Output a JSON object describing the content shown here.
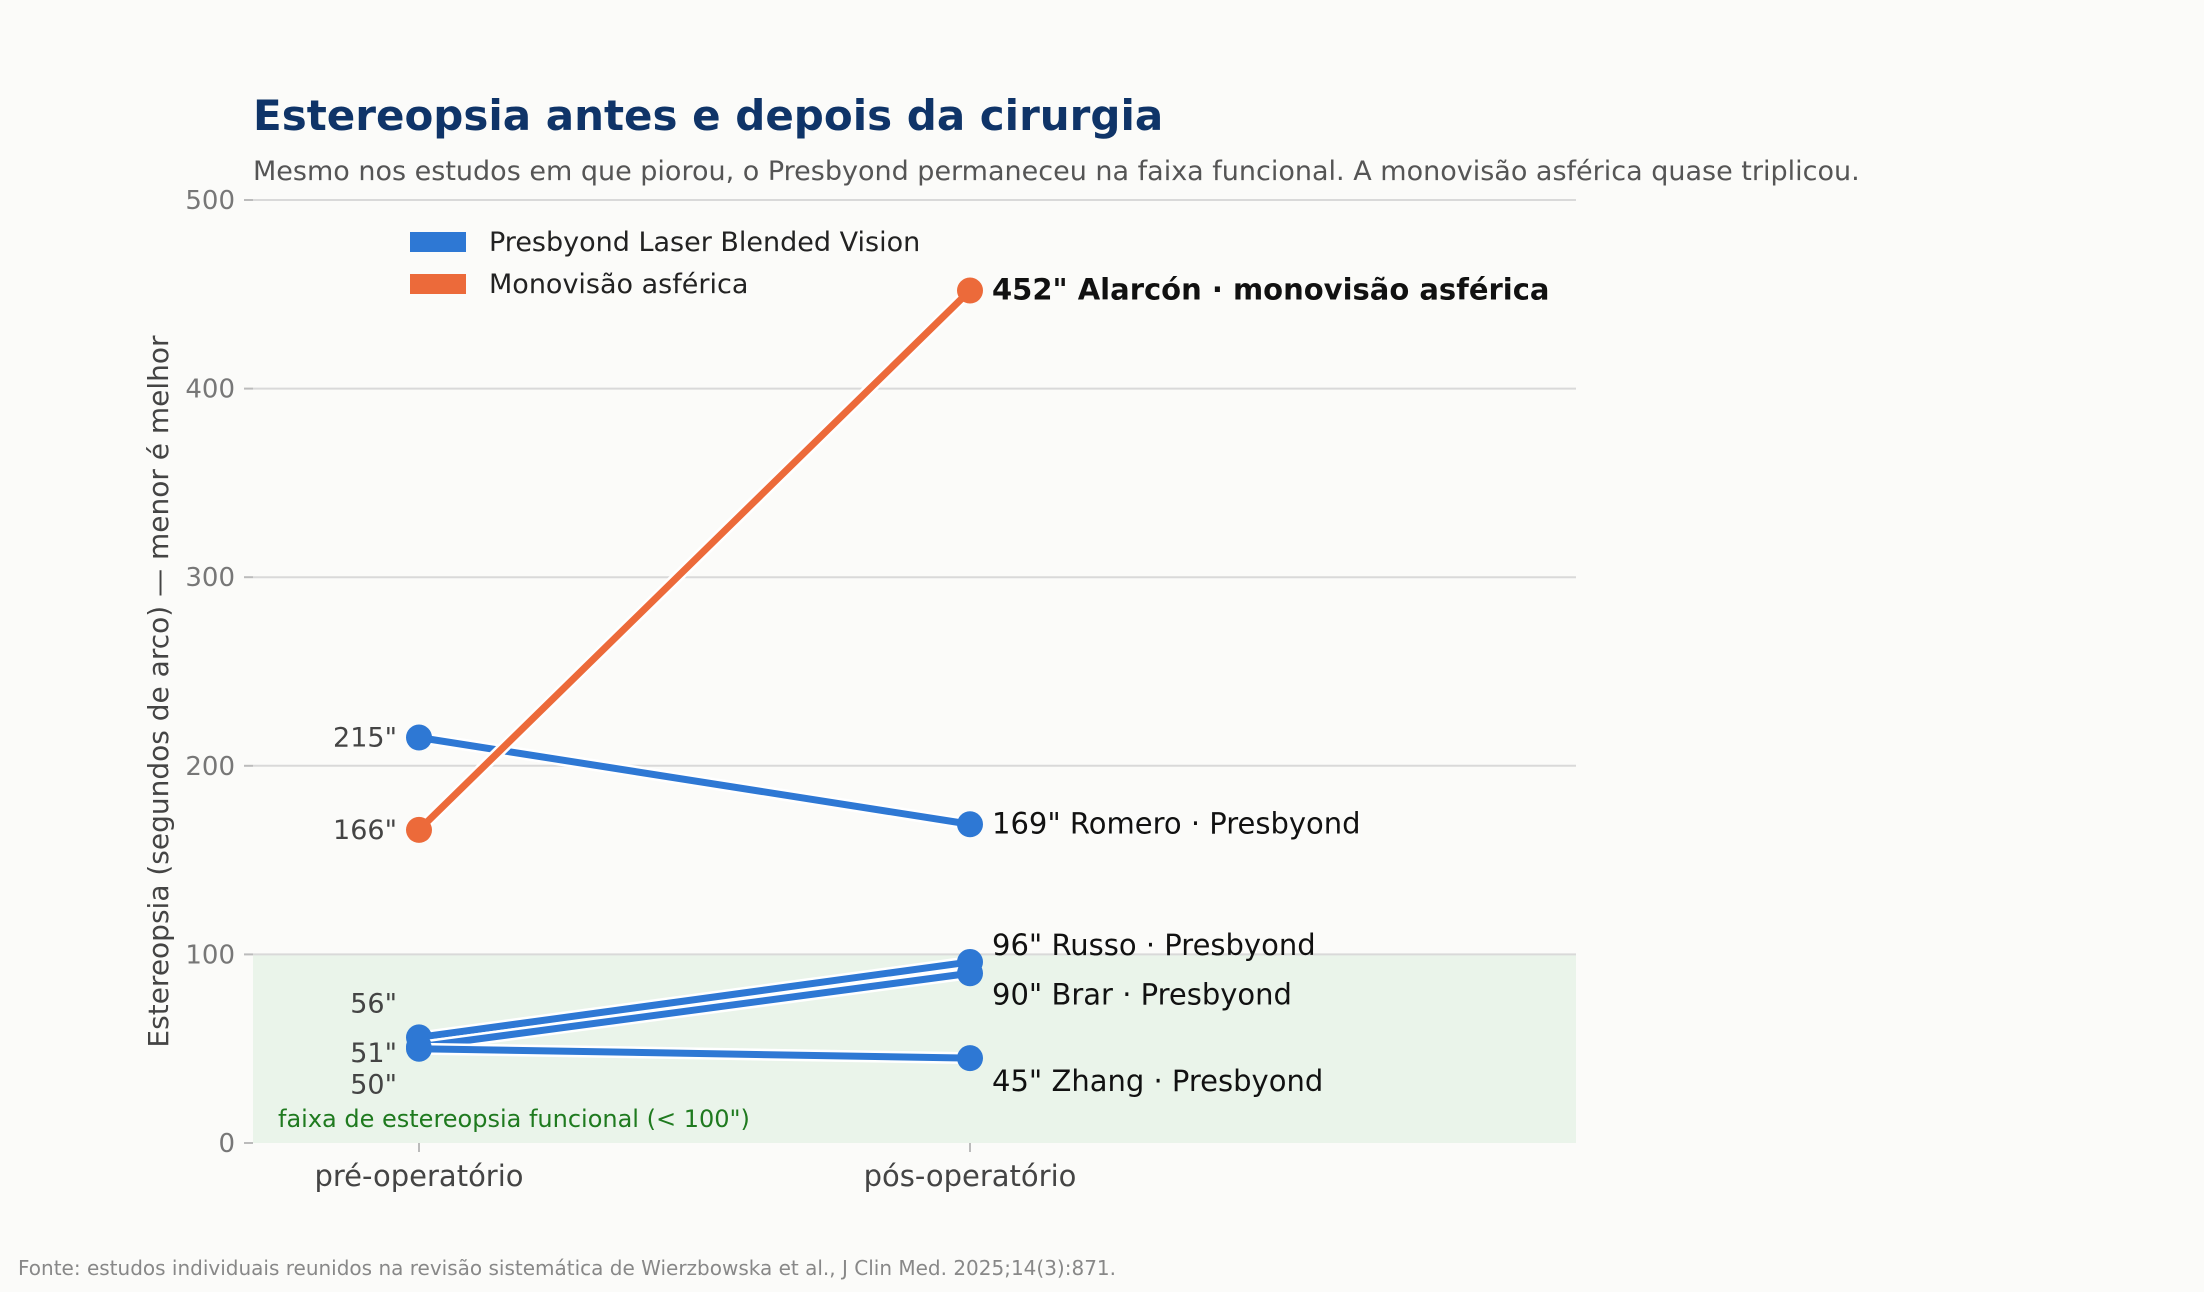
{
  "header": {
    "title": "Estereopsia antes e depois da cirurgia",
    "subtitle": "Mesmo nos estudos em que piorou, o Presbyond permaneceu na faixa funcional. A monovisão asférica quase triplicou."
  },
  "footer": {
    "source": "Fonte: estudos individuais reunidos na revisão sistemática de Wierzbowska et al., J Clin Med. 2025;14(3):871."
  },
  "chart_data": {
    "type": "line",
    "title": "Estereopsia antes e depois da cirurgia",
    "subtitle": "Mesmo nos estudos em que piorou, o Presbyond permaneceu na faixa funcional. A monovisão asférica quase triplicou.",
    "xlabel": "",
    "ylabel": "Estereopsia (segundos de arco) — menor é melhor",
    "categories": [
      "pré-operatório",
      "pós-operatório"
    ],
    "ylim": [
      0,
      500
    ],
    "yticks": [
      0,
      100,
      200,
      300,
      400,
      500
    ],
    "grid": "horizontal",
    "legend_position": "top-left",
    "legend": [
      {
        "label": "Presbyond Laser Blended Vision",
        "color": "#2e78d4"
      },
      {
        "label": "Monovisão asférica",
        "color": "#ec6a3a"
      }
    ],
    "band": {
      "from": 0,
      "to": 100,
      "label": "faixa de estereopsia funcional (< 100\")",
      "color": "#eaf4ea"
    },
    "series": [
      {
        "name": "Alarcón · monovisão asférica",
        "group": "Monovisão asférica",
        "color": "#ec6a3a",
        "values": [
          166,
          452
        ],
        "pre_label": "166\"",
        "post_label": "452\"",
        "emphasis": true
      },
      {
        "name": "Romero · Presbyond",
        "group": "Presbyond Laser Blended Vision",
        "color": "#2e78d4",
        "values": [
          215,
          169
        ],
        "pre_label": "215\"",
        "post_label": "169\"",
        "emphasis": false
      },
      {
        "name": "Russo · Presbyond",
        "group": "Presbyond Laser Blended Vision",
        "color": "#2e78d4",
        "values": [
          56,
          96
        ],
        "pre_label": "56\"",
        "post_label": "96\"",
        "emphasis": false
      },
      {
        "name": "Brar · Presbyond",
        "group": "Presbyond Laser Blended Vision",
        "color": "#2e78d4",
        "values": [
          51,
          90
        ],
        "pre_label": "51\"",
        "post_label": "90\"",
        "emphasis": false
      },
      {
        "name": "Zhang · Presbyond",
        "group": "Presbyond Laser Blended Vision",
        "color": "#2e78d4",
        "values": [
          50,
          45
        ],
        "pre_label": "50\"",
        "post_label": "45\"",
        "emphasis": false
      }
    ]
  }
}
